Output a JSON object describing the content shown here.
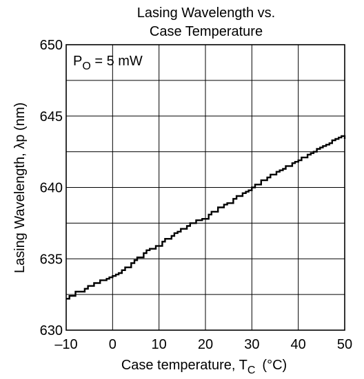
{
  "chart_data": {
    "type": "line",
    "title_lines": [
      "Lasing Wavelength vs.",
      "Case Temperature"
    ],
    "xlabel": "Case temperature, T",
    "xlabel_sub": "C",
    "xlabel_unit": "(°C)",
    "ylabel": "Lasing Wavelength, λp  (nm)",
    "xlim": [
      -10,
      50
    ],
    "ylim": [
      630,
      650
    ],
    "xticks": [
      -10,
      0,
      10,
      20,
      30,
      40,
      50
    ],
    "xtick_labels": [
      "–10",
      "0",
      "10",
      "20",
      "30",
      "40",
      "50"
    ],
    "yticks": [
      630,
      635,
      640,
      645,
      650
    ],
    "ytick_labels": [
      "630",
      "635",
      "640",
      "645",
      "650"
    ],
    "x_gridlines": [
      -10,
      0,
      10,
      20,
      30,
      40,
      50
    ],
    "y_gridlines": [
      630,
      632.5,
      635,
      637.5,
      640,
      642.5,
      645,
      647.5,
      650
    ],
    "grid": true,
    "annotation": {
      "text": "P",
      "sub": "O",
      "tail": " = 5 mW"
    },
    "series": [
      {
        "x": [
          -10,
          -9.3,
          -8.7,
          -8,
          -7.3,
          -6.7,
          -6,
          -5.3,
          -4.7,
          -4,
          -3.3,
          -2.7,
          -2,
          -1.3,
          -0.7,
          0,
          0.7,
          1.3,
          2,
          2.7,
          3.3,
          4,
          4.7,
          5.3,
          6,
          6.7,
          7.3,
          8,
          8.7,
          9.3,
          10,
          10.7,
          11.3,
          12,
          12.7,
          13.3,
          14,
          14.7,
          15.3,
          16,
          16.7,
          17.3,
          18,
          18.7,
          19.3,
          20,
          20.7,
          21.3,
          22,
          22.7,
          23.3,
          24,
          24.7,
          25.3,
          26,
          26.7,
          27.3,
          28,
          28.7,
          29.3,
          30,
          30.7,
          31.3,
          32,
          32.7,
          33.3,
          34,
          34.7,
          35.3,
          36,
          36.7,
          37.3,
          38,
          38.7,
          39.3,
          40,
          40.7,
          41.3,
          42,
          42.7,
          43.3,
          44,
          44.7,
          45.3,
          46,
          46.7,
          47.3,
          48,
          48.7,
          49.3,
          50
        ],
        "y": [
          632.2,
          632.4,
          632.4,
          632.7,
          632.7,
          632.7,
          632.9,
          633.1,
          633.1,
          633.3,
          633.3,
          633.5,
          633.5,
          633.6,
          633.7,
          633.8,
          633.9,
          634,
          634.2,
          634.4,
          634.4,
          634.7,
          634.9,
          635.1,
          635.1,
          635.4,
          635.6,
          635.7,
          635.7,
          635.9,
          635.9,
          636.2,
          636.4,
          636.4,
          636.6,
          636.8,
          636.9,
          637.1,
          637.1,
          637.3,
          637.5,
          637.5,
          637.7,
          637.7,
          637.8,
          637.8,
          638.1,
          638.3,
          638.3,
          638.6,
          638.6,
          638.8,
          638.9,
          638.9,
          639.2,
          639.4,
          639.4,
          639.6,
          639.7,
          639.8,
          640,
          640.2,
          640.2,
          640.5,
          640.5,
          640.7,
          640.9,
          640.9,
          641.1,
          641.2,
          641.3,
          641.5,
          641.5,
          641.7,
          641.8,
          641.9,
          642.1,
          642.1,
          642.3,
          642.4,
          642.5,
          642.7,
          642.8,
          642.9,
          643,
          643.1,
          643.3,
          643.4,
          643.5,
          643.6,
          643.4
        ]
      }
    ]
  }
}
